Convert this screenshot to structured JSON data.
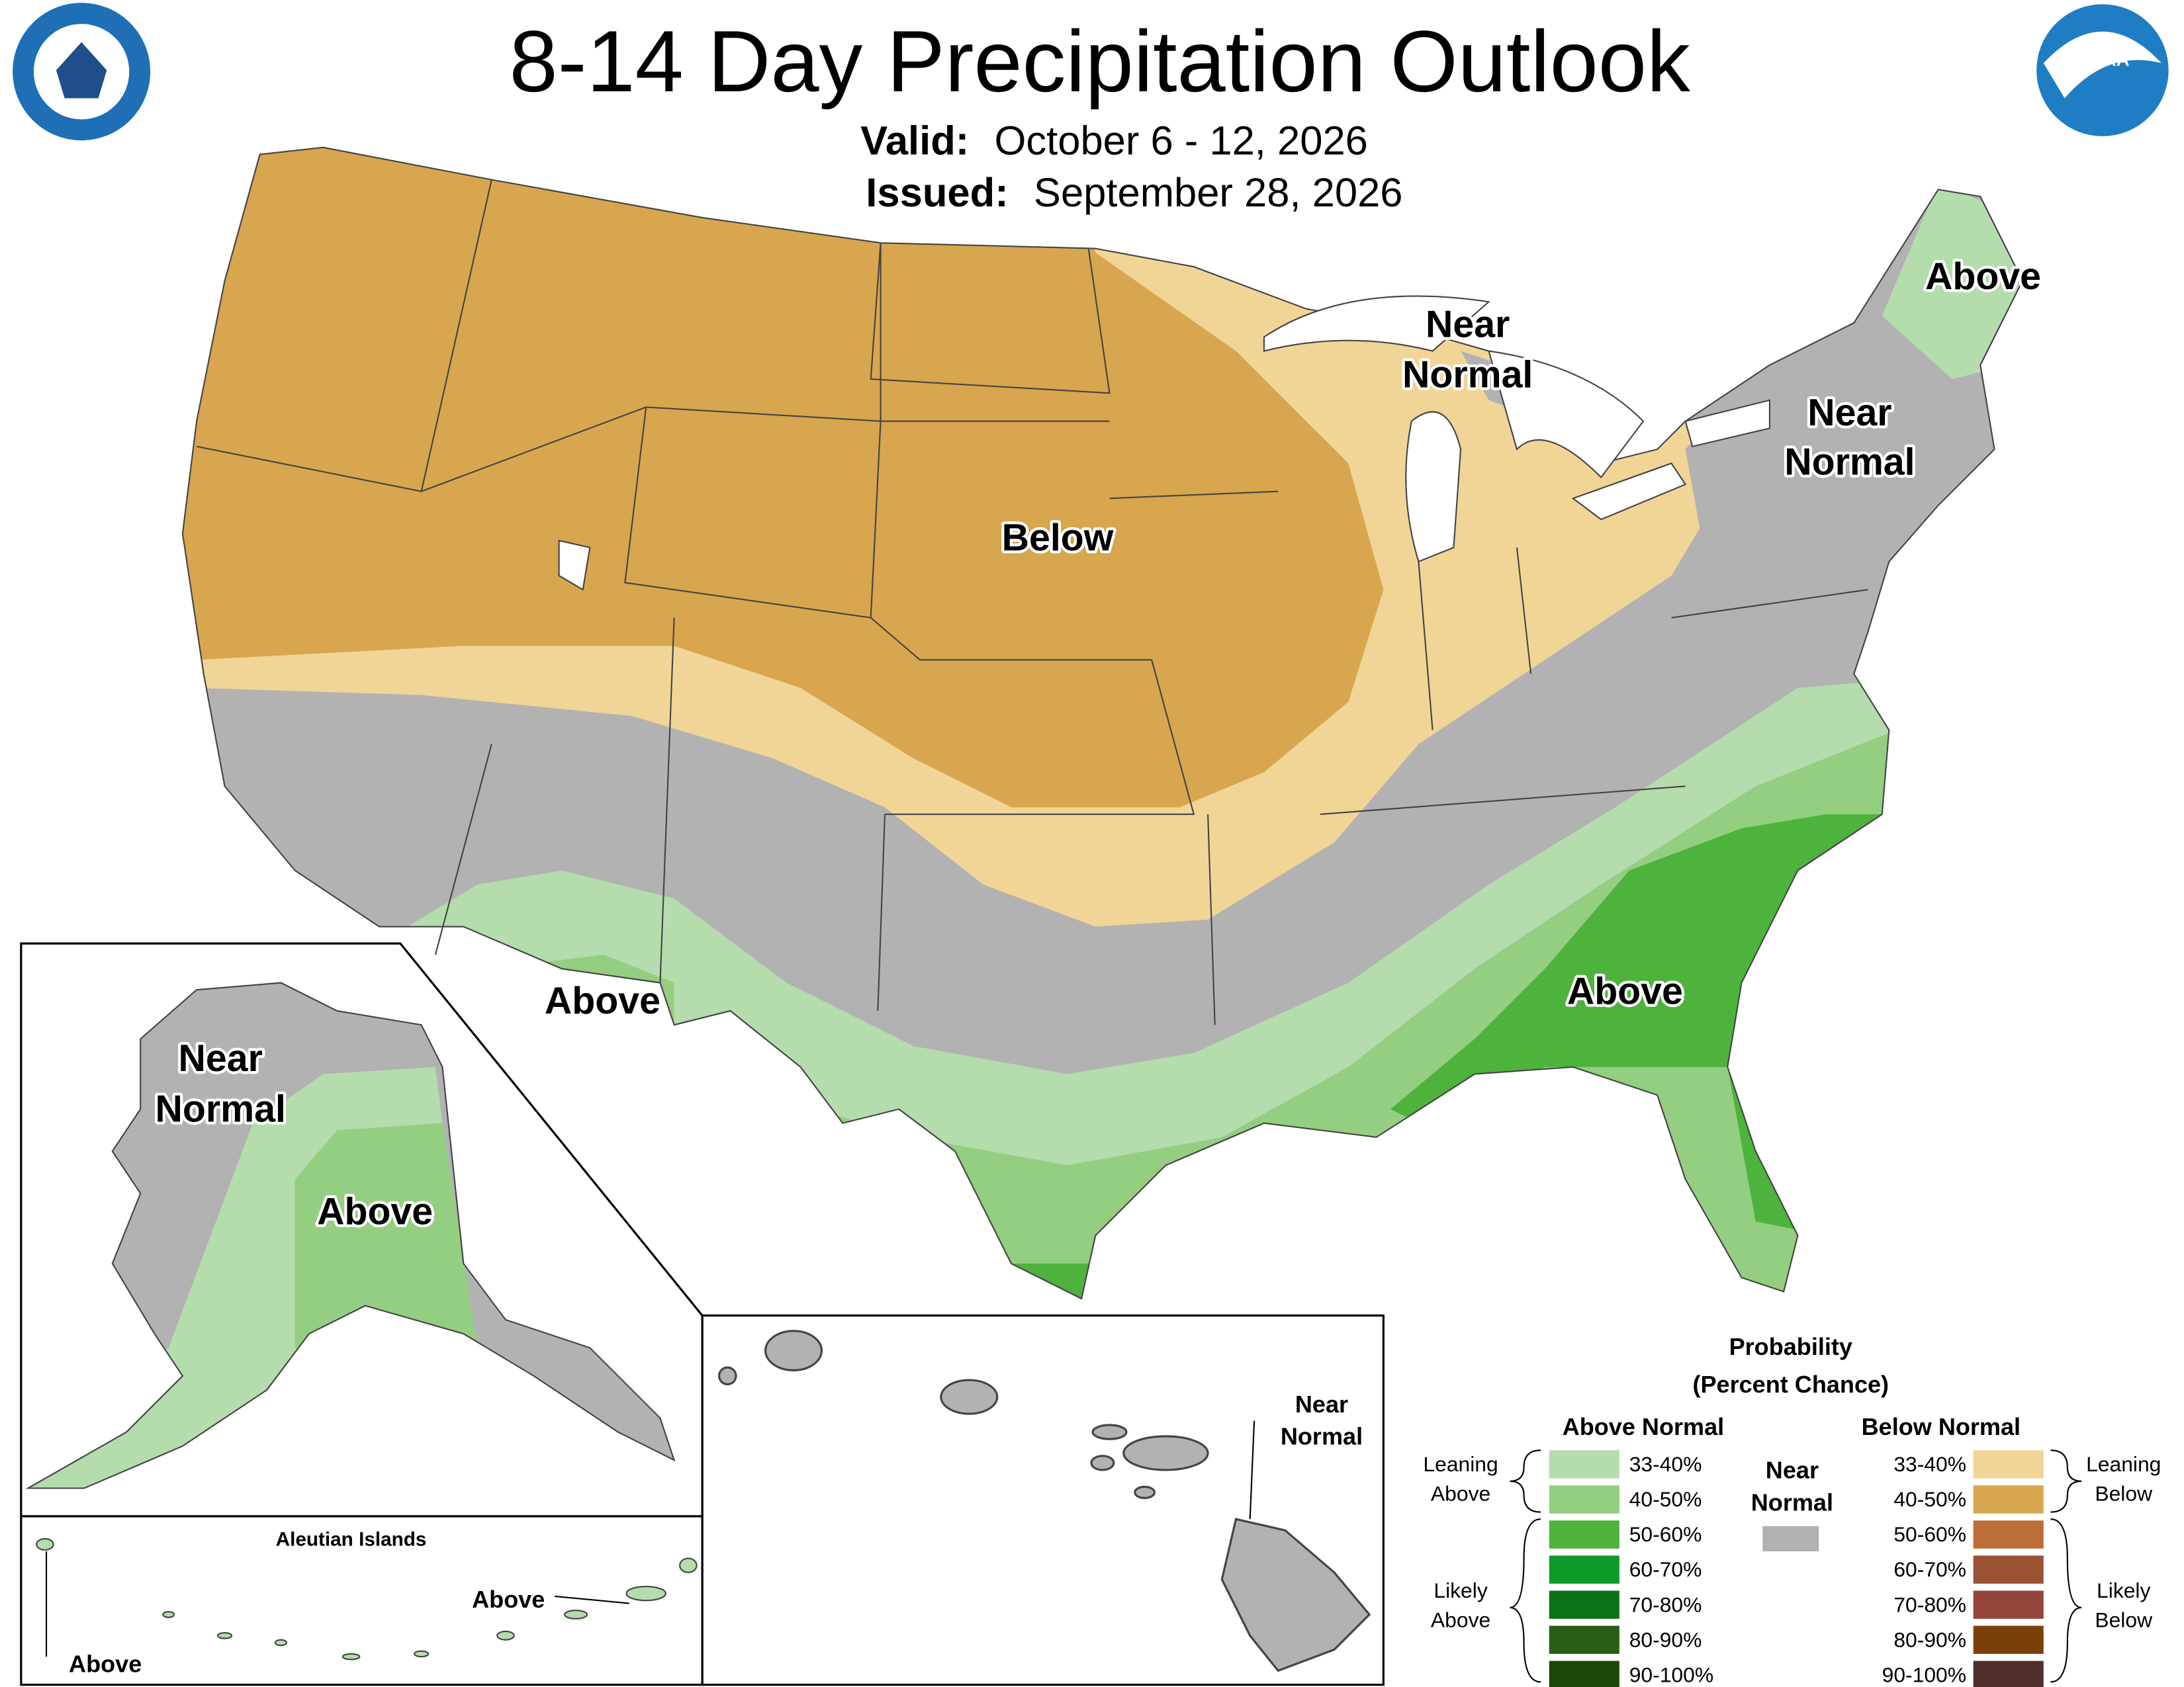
{
  "header": {
    "title": "8-14 Day Precipitation Outlook",
    "valid_label": "Valid:",
    "valid": "October 6 - 12, 2026",
    "issued_label": "Issued:",
    "issued": "September 28, 2026",
    "noaa_logo": "NOAA"
  },
  "map_labels": [
    {
      "lines": [
        "Below"
      ]
    },
    {
      "lines": [
        "Near",
        "Normal"
      ]
    },
    {
      "lines": [
        "Near",
        "Normal"
      ]
    },
    {
      "lines": [
        "Above"
      ]
    },
    {
      "lines": [
        "Above"
      ]
    },
    {
      "lines": [
        "Above"
      ]
    }
  ],
  "alaska": {
    "labels": [
      {
        "lines": [
          "Near",
          "Normal"
        ]
      },
      {
        "lines": [
          "Above"
        ]
      }
    ]
  },
  "aleutians": {
    "title": "Aleutian Islands",
    "labels": [
      "Above",
      "Above"
    ]
  },
  "hawaii": {
    "label": [
      "Near",
      "Normal"
    ]
  },
  "legend": {
    "title": "Probability",
    "subtitle": "(Percent Chance)",
    "above_title": "Above Normal",
    "below_title": "Below Normal",
    "near_title": [
      "Near",
      "Normal"
    ],
    "near_color": "#b2b2b2",
    "leaning_above": [
      "Leaning",
      "Above"
    ],
    "likely_above": [
      "Likely",
      "Above"
    ],
    "leaning_below": [
      "Leaning",
      "Below"
    ],
    "likely_below": [
      "Likely",
      "Below"
    ],
    "above": [
      {
        "range": "33-40%",
        "color": "#b4dcad"
      },
      {
        "range": "40-50%",
        "color": "#94ce81"
      },
      {
        "range": "50-60%",
        "color": "#4db33d"
      },
      {
        "range": "60-70%",
        "color": "#0d9a28"
      },
      {
        "range": "70-80%",
        "color": "#0b7317"
      },
      {
        "range": "80-90%",
        "color": "#285f14"
      },
      {
        "range": "90-100%",
        "color": "#1d4708"
      }
    ],
    "below": [
      {
        "range": "33-40%",
        "color": "#f1d597"
      },
      {
        "range": "40-50%",
        "color": "#d8a64e"
      },
      {
        "range": "50-60%",
        "color": "#bd6d36"
      },
      {
        "range": "60-70%",
        "color": "#9b5233"
      },
      {
        "range": "70-80%",
        "color": "#94443b"
      },
      {
        "range": "80-90%",
        "color": "#7b4009"
      },
      {
        "range": "90-100%",
        "color": "#4f2e2c"
      }
    ]
  }
}
